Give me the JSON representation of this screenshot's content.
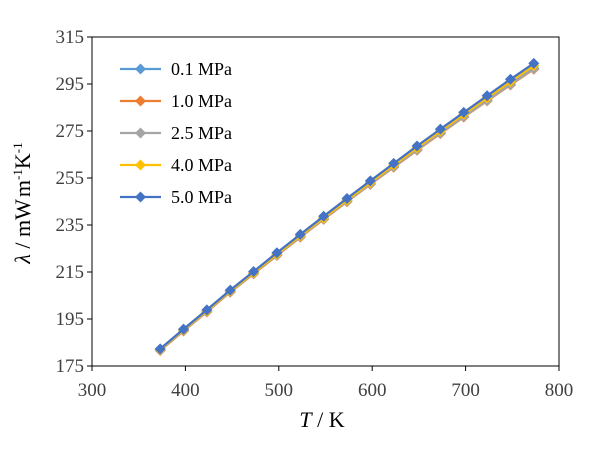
{
  "chart_data": {
    "type": "line",
    "xlabel_italic": "T",
    "xlabel_rest": " / K",
    "ylabel_symbol": "λ",
    "ylabel_sep": " / ",
    "ylabel_unit_a": "mW",
    "ylabel_unit_b": "m",
    "ylabel_exp_b": "-1",
    "ylabel_unit_c": "K",
    "ylabel_exp_c": "-1",
    "xlim": [
      300,
      800
    ],
    "ylim": [
      175,
      315
    ],
    "xticks": [
      300,
      400,
      500,
      600,
      700,
      800
    ],
    "yticks": [
      175,
      195,
      215,
      235,
      255,
      275,
      295,
      315
    ],
    "grid": false,
    "legend_position": "top-left",
    "x": [
      373,
      398,
      423,
      448,
      473,
      498,
      523,
      548,
      573,
      598,
      623,
      648,
      673,
      698,
      723,
      748,
      773
    ],
    "series": [
      {
        "name": "0.1 MPa",
        "color": "#5B9BD5",
        "values": [
          182.0,
          190.3,
          198.4,
          206.8,
          214.6,
          222.4,
          230.2,
          237.8,
          245.3,
          252.7,
          260.0,
          267.2,
          274.3,
          281.3,
          288.2,
          295.0,
          301.7
        ]
      },
      {
        "name": "1.0 MPa",
        "color": "#ED7D31",
        "values": [
          181.6,
          189.9,
          198.0,
          206.4,
          214.2,
          222.0,
          229.8,
          237.4,
          244.9,
          252.3,
          259.6,
          266.8,
          273.9,
          280.9,
          287.8,
          294.6,
          301.3
        ]
      },
      {
        "name": "2.5 MPa",
        "color": "#A5A5A5",
        "values": [
          181.8,
          190.1,
          198.2,
          206.6,
          214.4,
          222.2,
          230.0,
          237.6,
          245.1,
          252.5,
          259.8,
          267.0,
          274.1,
          281.1,
          288.0,
          294.8,
          301.5
        ]
      },
      {
        "name": "4.0 MPa",
        "color": "#FFC000",
        "values": [
          182.1,
          190.4,
          198.5,
          206.9,
          214.7,
          222.6,
          230.4,
          238.0,
          245.6,
          253.1,
          260.5,
          267.8,
          275.0,
          282.1,
          289.1,
          296.0,
          302.8
        ]
      },
      {
        "name": "5.0 MPa",
        "color": "#4472C4",
        "values": [
          182.3,
          190.7,
          198.9,
          207.3,
          215.2,
          223.2,
          231.0,
          238.7,
          246.3,
          253.8,
          261.2,
          268.6,
          275.8,
          282.9,
          290.0,
          297.0,
          303.8
        ]
      }
    ]
  }
}
